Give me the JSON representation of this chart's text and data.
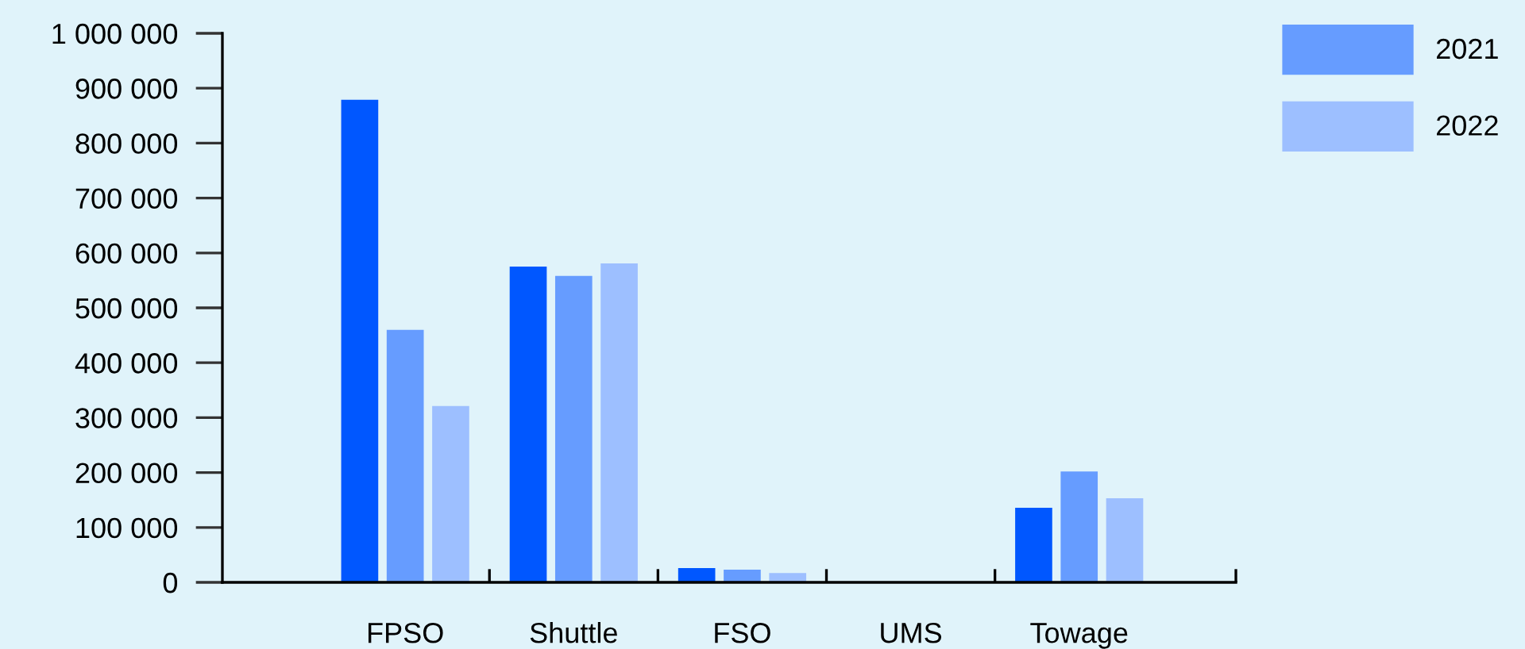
{
  "chart_data": {
    "type": "bar",
    "categories": [
      "FPSO",
      "Shuttle",
      "FSO",
      "UMS",
      "Towage"
    ],
    "series": [
      {
        "color": "#0057ff",
        "values": [
          879000,
          575000,
          26000,
          0,
          136000
        ]
      },
      {
        "name": "2021",
        "color": "#669cff",
        "values": [
          460000,
          558000,
          23000,
          0,
          202000
        ]
      },
      {
        "name": "2022",
        "color": "#9dbfff",
        "values": [
          321000,
          581000,
          17000,
          0,
          153000
        ]
      }
    ],
    "ylim": [
      0,
      1000000
    ],
    "yticks": [
      0,
      {
        "value": 100000,
        "label": "100 000"
      },
      {
        "value": 200000,
        "label": "200 000"
      },
      {
        "value": 300000,
        "label": "300 000"
      },
      {
        "value": 400000,
        "label": "400 000"
      },
      {
        "value": 500000,
        "label": "500 000"
      },
      {
        "value": 600000,
        "label": "600 000"
      },
      {
        "value": 700000,
        "label": "700 000"
      },
      {
        "value": 800000,
        "label": "800 000"
      },
      {
        "value": 900000,
        "label": "900 000"
      },
      {
        "value": 1000000,
        "label": "1 000 000"
      }
    ],
    "grid": false,
    "legend": "top right"
  }
}
